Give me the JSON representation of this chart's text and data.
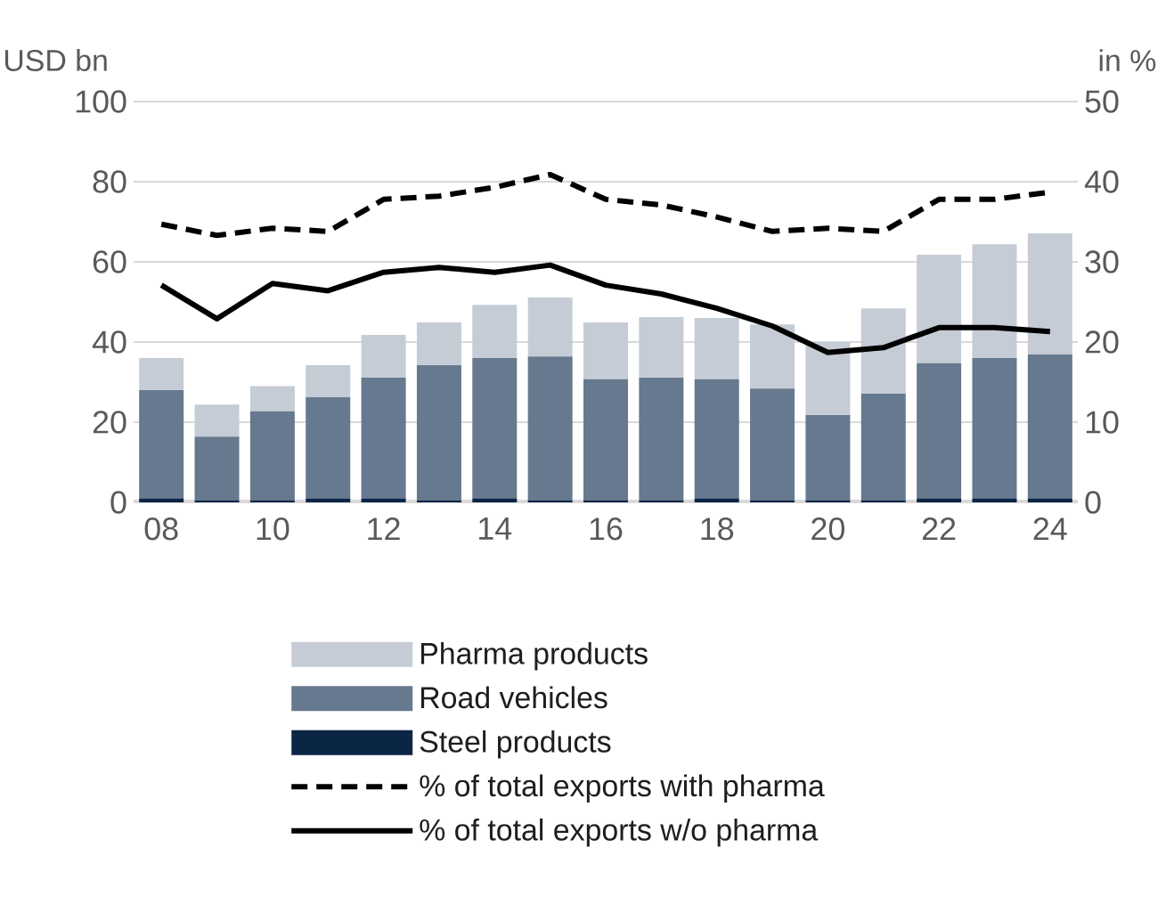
{
  "chart_data": {
    "type": "bar",
    "stacked": true,
    "ylabel": "USD bn",
    "y2label": "in %",
    "categories": [
      "08",
      null,
      "10",
      null,
      "12",
      null,
      "14",
      null,
      "16",
      null,
      "18",
      null,
      "20",
      null,
      "22",
      null,
      "24"
    ],
    "ylim": [
      0,
      100
    ],
    "yticks": [
      0,
      20,
      40,
      60,
      80,
      100
    ],
    "y2lim": [
      0,
      50
    ],
    "y2ticks": [
      0,
      10,
      20,
      30,
      40,
      50
    ],
    "grid": "y",
    "legend": "bottom",
    "series": [
      {
        "name": "Steel products",
        "color": "#0b2545",
        "values": [
          1,
          0.5,
          0.5,
          1,
          1,
          0.5,
          1,
          0.5,
          0.5,
          0.5,
          1,
          0.5,
          0.5,
          0.5,
          1,
          1,
          1
        ]
      },
      {
        "name": "Road vehicles",
        "color": "#66798e",
        "values": [
          27,
          15.9,
          22.2,
          25.2,
          30.1,
          33.7,
          35,
          35.9,
          30.2,
          30.6,
          29.7,
          27.9,
          21.3,
          26.6,
          33.7,
          35,
          35.9
        ]
      },
      {
        "name": "Pharma products",
        "color": "#c5ccd6",
        "values": [
          8,
          8,
          6.3,
          8,
          10.7,
          10.7,
          13.3,
          14.7,
          14.2,
          15.1,
          15.3,
          16,
          18.2,
          21.3,
          27.1,
          28.4,
          30.2
        ]
      },
      {
        "name": "% of total exports with pharma",
        "type": "line",
        "axis": "y2",
        "line_style": "dashed",
        "color": "#000000",
        "values": [
          34.7,
          33.3,
          34.2,
          33.8,
          37.8,
          38.2,
          39.3,
          40.9,
          37.8,
          37.1,
          35.6,
          33.8,
          34.2,
          33.8,
          37.8,
          37.8,
          38.7
        ]
      },
      {
        "name": "% of total exports w/o pharma",
        "type": "line",
        "axis": "y2",
        "line_style": "solid",
        "color": "#000000",
        "values": [
          27.1,
          22.9,
          27.3,
          26.4,
          28.7,
          29.3,
          28.7,
          29.6,
          27.1,
          26,
          24.2,
          22,
          18.7,
          19.3,
          21.8,
          21.8,
          21.3
        ]
      }
    ]
  }
}
